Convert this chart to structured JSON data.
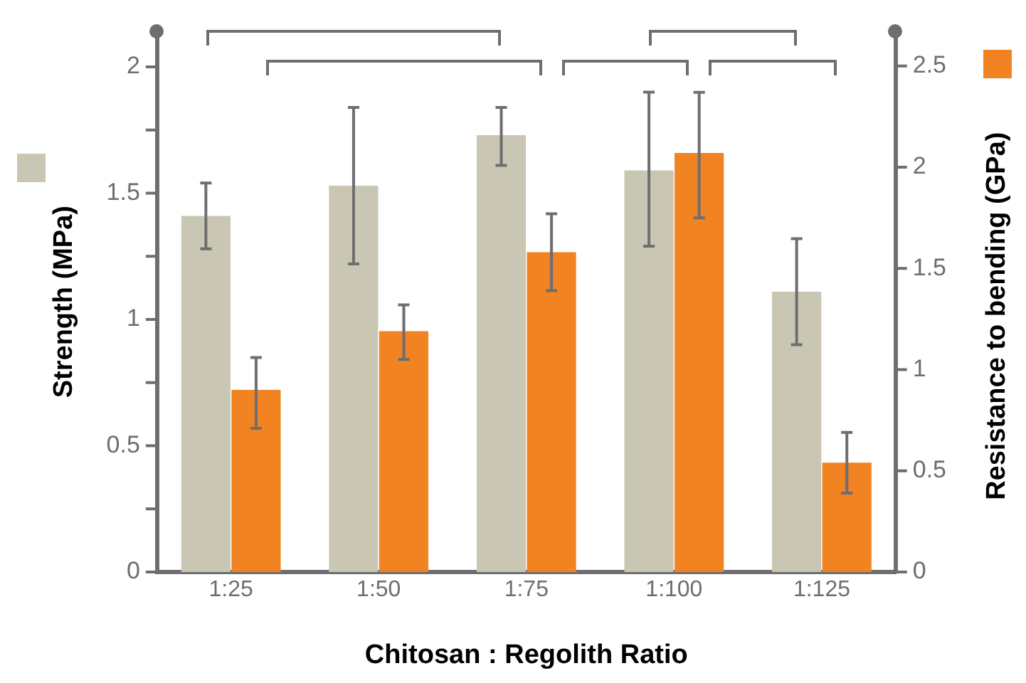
{
  "chart_data": {
    "type": "bar",
    "xlabel": "Chitosan : Regolith Ratio",
    "ylabel": "Strength (MPa)",
    "y2label": "Resistance to bending (GPa)",
    "categories": [
      "1:25",
      "1:50",
      "1:75",
      "1:100",
      "1:125"
    ],
    "series": [
      {
        "color": "#c9c7b3",
        "values": [
          1.41,
          1.53,
          1.73,
          1.59,
          1.11
        ],
        "errors": [
          [
            1.28,
            1.54
          ],
          [
            1.22,
            1.84
          ],
          [
            1.61,
            1.84
          ],
          [
            1.29,
            1.9
          ],
          [
            0.9,
            1.32
          ]
        ]
      },
      {
        "color": "#f28322",
        "axis": "y2",
        "values": [
          0.9,
          1.19,
          1.58,
          2.07,
          0.54
        ],
        "errors": [
          [
            0.71,
            1.06
          ],
          [
            1.05,
            1.32
          ],
          [
            1.39,
            1.77
          ],
          [
            1.75,
            2.37
          ],
          [
            0.39,
            0.69
          ]
        ]
      }
    ],
    "ylim": [
      0,
      2.14
    ],
    "yticks": [
      0,
      {
        "value": 0.25,
        "label": null
      },
      0.5,
      {
        "value": 0.75,
        "label": null
      },
      1,
      {
        "value": 1.25,
        "label": null
      },
      1.5,
      {
        "value": 1.75,
        "label": null
      },
      2
    ],
    "y2lim": [
      0,
      2.67
    ],
    "y2ticks": [
      0,
      0.5,
      1,
      1.5,
      2,
      2.5
    ],
    "grid": false,
    "legend": false
  }
}
